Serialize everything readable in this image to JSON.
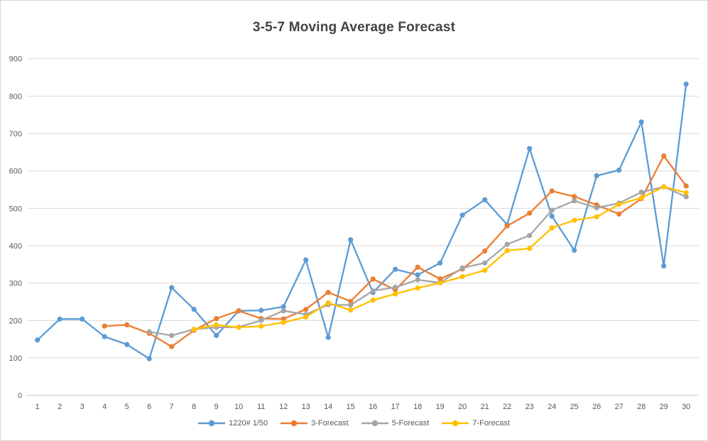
{
  "chart_data": {
    "type": "line",
    "title": "3-5-7 Moving Average Forecast",
    "xlabel": "",
    "ylabel": "",
    "ylim": [
      0,
      900
    ],
    "y_ticks": [
      0,
      100,
      200,
      300,
      400,
      500,
      600,
      700,
      800,
      900
    ],
    "grid": true,
    "legend_position": "bottom",
    "categories": [
      1,
      2,
      3,
      4,
      5,
      6,
      7,
      8,
      9,
      10,
      11,
      12,
      13,
      14,
      15,
      16,
      17,
      18,
      19,
      20,
      21,
      22,
      23,
      24,
      25,
      26,
      27,
      28,
      29,
      30
    ],
    "series": [
      {
        "name": "1220# 1/50",
        "color": "#5B9BD5",
        "values": [
          148,
          204,
          204,
          157,
          136,
          98,
          288,
          230,
          160,
          226,
          227,
          237,
          362,
          155,
          416,
          275,
          337,
          322,
          354,
          482,
          523,
          456,
          660,
          479,
          388,
          587,
          602,
          731,
          346,
          832
        ]
      },
      {
        "name": "3-Forecast",
        "color": "#ED7D31",
        "values": [
          null,
          null,
          null,
          185.3,
          188.3,
          165.7,
          130.3,
          174.0,
          205.3,
          226.0,
          205.3,
          204.3,
          230.0,
          275.3,
          251.3,
          311.0,
          282.0,
          342.7,
          311.3,
          337.7,
          386.0,
          453.0,
          487.0,
          546.3,
          531.7,
          509.0,
          484.7,
          525.7,
          640.0,
          559.7
        ]
      },
      {
        "name": "5-Forecast",
        "color": "#A5A5A5",
        "values": [
          null,
          null,
          null,
          null,
          null,
          169.8,
          159.8,
          176.6,
          181.8,
          182.4,
          200.4,
          226.2,
          216.0,
          242.4,
          241.4,
          279.4,
          289.0,
          309.0,
          301.0,
          340.8,
          354.0,
          403.6,
          427.4,
          495.0,
          520.0,
          501.2,
          514.0,
          543.2,
          557.4,
          530.8
        ]
      },
      {
        "name": "7-Forecast",
        "color": "#FFC000",
        "values": [
          null,
          null,
          null,
          null,
          null,
          null,
          null,
          176.4,
          188.1,
          181.9,
          185.0,
          195.0,
          209.4,
          247.1,
          228.1,
          254.7,
          271.1,
          287.0,
          300.6,
          317.3,
          334.4,
          387.0,
          392.7,
          447.7,
          468.0,
          477.4,
          510.7,
          527.9,
          557.6,
          541.9
        ]
      }
    ]
  },
  "styles": {
    "title_color": "#444444",
    "axis_label_color": "#595959",
    "gridline_color": "#D9D9D9",
    "axis_line_color": "#C9C9C9",
    "background": "#FFFFFF"
  }
}
